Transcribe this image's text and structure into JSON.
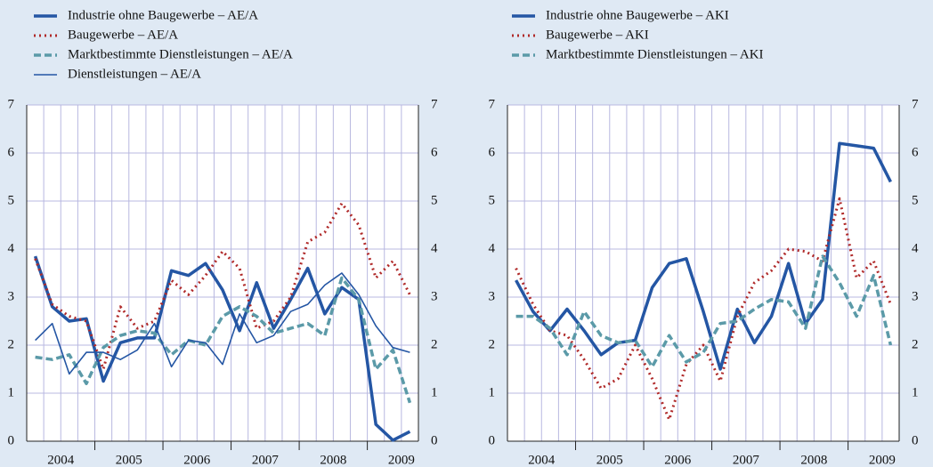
{
  "chart_data": [
    {
      "type": "line",
      "categories": [
        null,
        "2004",
        null,
        null,
        null,
        "2005",
        null,
        null,
        null,
        "2006",
        null,
        null,
        null,
        "2007",
        null,
        null,
        null,
        "2008",
        null,
        null,
        null,
        "2009",
        null
      ],
      "ylim": [
        0,
        7
      ],
      "yticks": [
        0,
        1,
        2,
        3,
        4,
        5,
        6,
        7
      ],
      "y2lim": [
        0,
        7
      ],
      "y2ticks": [
        0,
        1,
        2,
        3,
        4,
        5,
        6,
        7
      ],
      "grid": true,
      "legend": "top-left",
      "series": [
        {
          "name": "Industrie ohne Baugewerbe – AE/A",
          "color": "#2456a4",
          "line_style": "solid",
          "width": 3.5,
          "values": [
            3.85,
            2.8,
            2.5,
            2.55,
            1.25,
            2.05,
            2.15,
            2.15,
            3.55,
            3.45,
            3.7,
            3.15,
            2.3,
            3.3,
            2.35,
            2.95,
            3.6,
            2.65,
            3.2,
            2.95,
            0.35,
            0.02,
            0.2
          ]
        },
        {
          "name": "Baugewerbe – AE/A",
          "color": "#b02a2a",
          "line_style": "dotted",
          "width": 3,
          "values": [
            3.8,
            2.85,
            2.6,
            2.5,
            1.5,
            2.8,
            2.35,
            2.5,
            3.35,
            3.05,
            3.45,
            3.95,
            3.6,
            2.35,
            2.5,
            3.0,
            4.15,
            4.35,
            4.95,
            4.5,
            3.4,
            3.75,
            3.05
          ]
        },
        {
          "name": "Marktbestimmte Dienstleistungen – AE/A",
          "color": "#5b9aa8",
          "line_style": "dashed",
          "width": 3.5,
          "values": [
            1.75,
            1.7,
            1.8,
            1.2,
            1.95,
            2.2,
            2.3,
            2.25,
            1.8,
            2.1,
            2.0,
            2.6,
            2.8,
            2.6,
            2.25,
            2.35,
            2.45,
            2.2,
            3.4,
            2.95,
            1.5,
            1.9,
            0.8
          ]
        },
        {
          "name": "Dienstleistungen – AE/A",
          "color": "#2456a4",
          "line_style": "solid",
          "width": 1.6,
          "values": [
            2.1,
            2.45,
            1.4,
            1.85,
            1.85,
            1.7,
            1.9,
            2.45,
            1.55,
            2.1,
            2.05,
            1.6,
            2.65,
            2.05,
            2.2,
            2.7,
            2.85,
            3.25,
            3.5,
            3.05,
            2.4,
            1.95,
            1.85
          ]
        }
      ]
    },
    {
      "type": "line",
      "categories": [
        null,
        "2004",
        null,
        null,
        null,
        "2005",
        null,
        null,
        null,
        "2006",
        null,
        null,
        null,
        "2007",
        null,
        null,
        null,
        "2008",
        null,
        null,
        null,
        "2009",
        null
      ],
      "ylim": [
        0,
        7
      ],
      "yticks": [
        0,
        1,
        2,
        3,
        4,
        5,
        6,
        7
      ],
      "y2lim": [
        0,
        7
      ],
      "y2ticks": [
        0,
        1,
        2,
        3,
        4,
        5,
        6,
        7
      ],
      "grid": true,
      "legend": "top-left",
      "series": [
        {
          "name": "Industrie ohne Baugewerbe – AKI",
          "color": "#2456a4",
          "line_style": "solid",
          "width": 3.5,
          "values": [
            3.35,
            2.7,
            2.3,
            2.75,
            2.3,
            1.8,
            2.05,
            2.1,
            3.2,
            3.7,
            3.8,
            2.7,
            1.5,
            2.75,
            2.05,
            2.6,
            3.7,
            2.45,
            2.95,
            6.2,
            6.15,
            6.1,
            5.4
          ]
        },
        {
          "name": "Baugewerbe – AKI",
          "color": "#b02a2a",
          "line_style": "dotted",
          "width": 3,
          "values": [
            3.6,
            2.85,
            2.3,
            2.2,
            1.7,
            1.1,
            1.3,
            2.0,
            1.3,
            0.45,
            1.6,
            2.0,
            1.25,
            2.6,
            3.3,
            3.55,
            4.0,
            3.95,
            3.75,
            5.05,
            3.4,
            3.75,
            2.85
          ]
        },
        {
          "name": "Marktbestimmte Dienstleistungen – AKI",
          "color": "#5b9aa8",
          "line_style": "dashed",
          "width": 3.5,
          "values": [
            2.6,
            2.6,
            2.35,
            1.8,
            2.7,
            2.2,
            2.05,
            2.1,
            1.55,
            2.2,
            1.65,
            1.85,
            2.45,
            2.5,
            2.75,
            2.95,
            2.9,
            2.35,
            3.85,
            3.3,
            2.6,
            3.45,
            2.0
          ]
        }
      ]
    }
  ]
}
